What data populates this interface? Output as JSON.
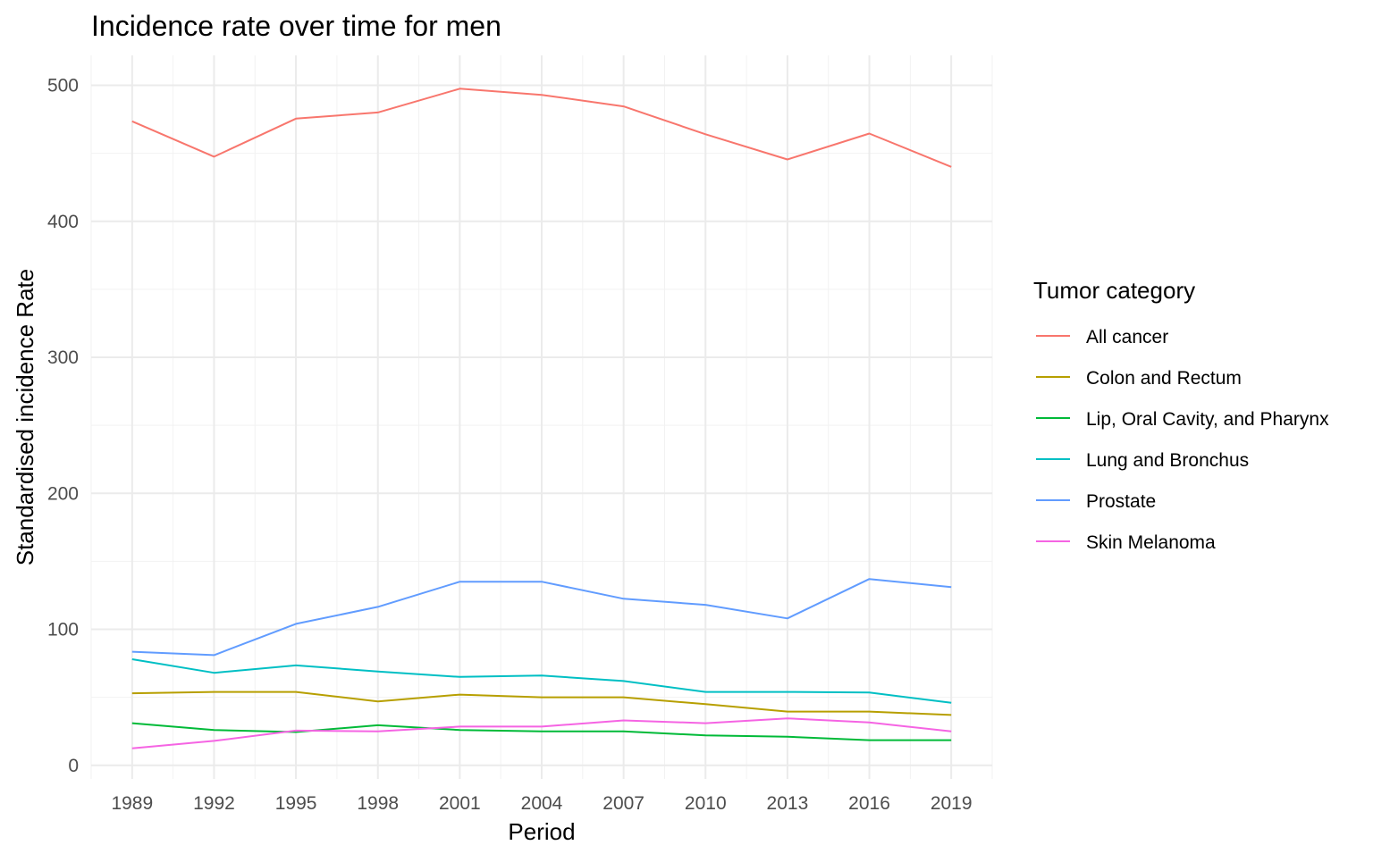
{
  "chart_data": {
    "type": "line",
    "title": "Incidence rate over time for men",
    "xlabel": "Period",
    "ylabel": "Standardised incidence Rate",
    "x": [
      1989,
      1992,
      1995,
      1998,
      2001,
      2004,
      2007,
      2010,
      2013,
      2016,
      2019
    ],
    "x_tick_labels": [
      "1989",
      "1992",
      "1995",
      "1998",
      "2001",
      "2004",
      "2007",
      "2010",
      "2013",
      "2016",
      "2019"
    ],
    "xlim": [
      1987.5,
      2020.5
    ],
    "ylim": [
      -10,
      522
    ],
    "y_ticks": [
      0,
      100,
      200,
      300,
      400,
      500
    ],
    "y_tick_labels": [
      "0",
      "100",
      "200",
      "300",
      "400",
      "500"
    ],
    "grid": true,
    "legend_title": "Tumor category",
    "legend_position": "right",
    "series": [
      {
        "name": "All cancer",
        "color": "#F8766D",
        "values": [
          473.5,
          447.5,
          475.5,
          480,
          497.5,
          493,
          484.5,
          464,
          445.5,
          464.5,
          440
        ]
      },
      {
        "name": "Colon and Rectum",
        "color": "#B79F00",
        "values": [
          53,
          54,
          54,
          47,
          52,
          50,
          50,
          45,
          39.5,
          39.5,
          37
        ]
      },
      {
        "name": "Lip, Oral Cavity, and Pharynx",
        "color": "#00BA38",
        "values": [
          31,
          26,
          24.5,
          29.5,
          26,
          25,
          25,
          22,
          21,
          18.5,
          18.5
        ]
      },
      {
        "name": "Lung and Bronchus",
        "color": "#00BFC4",
        "values": [
          78,
          68,
          73.5,
          69,
          65,
          66,
          62,
          54,
          54,
          53.5,
          46
        ]
      },
      {
        "name": "Prostate",
        "color": "#619CFF",
        "values": [
          83.5,
          81,
          104,
          116.5,
          135,
          135,
          122.5,
          118,
          108,
          137,
          131
        ]
      },
      {
        "name": "Skin Melanoma",
        "color": "#F564E3",
        "values": [
          12.5,
          18,
          25.5,
          25,
          28.5,
          28.5,
          33,
          31,
          34.5,
          31.5,
          25
        ]
      }
    ]
  }
}
